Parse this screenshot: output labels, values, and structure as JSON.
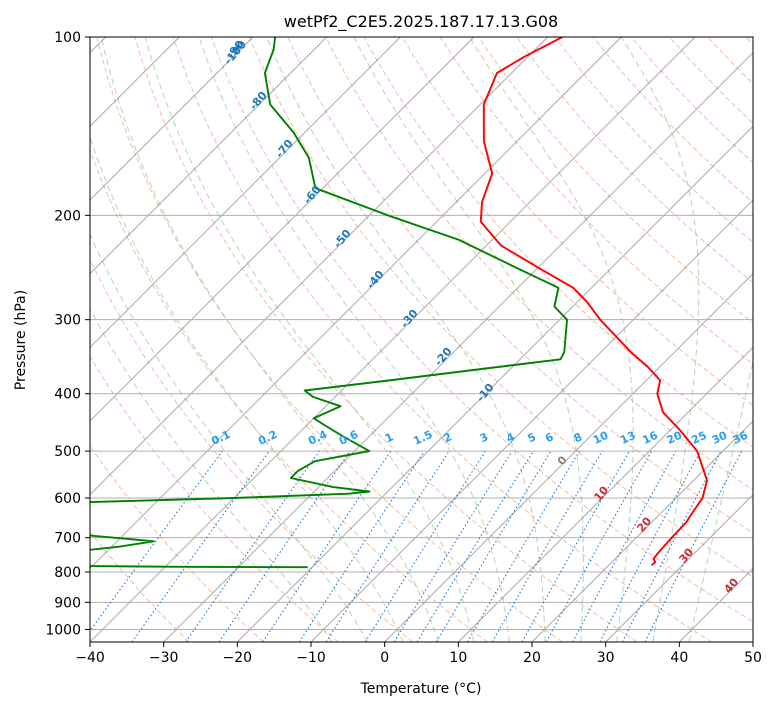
{
  "chart_data": {
    "type": "line",
    "subtype": "skew-T log-P diagram",
    "title": "wetPf2_C2E5.2025.187.17.13.G08",
    "xlabel": "Temperature (°C)",
    "ylabel": "Pressure (hPa)",
    "xlim": [
      -40,
      50
    ],
    "ylim": [
      1050,
      100
    ],
    "y_scale": "log",
    "x_ticks": [
      -40,
      -30,
      -20,
      -10,
      0,
      10,
      20,
      30,
      40,
      50
    ],
    "x_tick_labels": [
      "−40",
      "−30",
      "−20",
      "−10",
      "0",
      "10",
      "20",
      "30",
      "40",
      "50"
    ],
    "y_ticks": [
      100,
      200,
      300,
      400,
      500,
      600,
      700,
      800,
      900,
      1000
    ],
    "grid": true,
    "series": [
      {
        "role": "temperature",
        "color": "#ff0000",
        "points": [
          [
            779,
            25.8
          ],
          [
            770,
            25.9
          ],
          [
            760,
            25.2
          ],
          [
            740,
            25.0
          ],
          [
            700,
            24.8
          ],
          [
            660,
            24.7
          ],
          [
            640,
            24.3
          ],
          [
            600,
            23.6
          ],
          [
            560,
            21.8
          ],
          [
            500,
            16.5
          ],
          [
            460,
            11.2
          ],
          [
            430,
            6.6
          ],
          [
            400,
            3.3
          ],
          [
            380,
            1.9
          ],
          [
            360,
            -1.7
          ],
          [
            340,
            -6.0
          ],
          [
            300,
            -14.5
          ],
          [
            280,
            -18.7
          ],
          [
            265,
            -22.5
          ],
          [
            245,
            -30.0
          ],
          [
            225,
            -38.0
          ],
          [
            205,
            -44.0
          ],
          [
            190,
            -46.5
          ],
          [
            170,
            -49.0
          ],
          [
            150,
            -54.5
          ],
          [
            130,
            -59.5
          ],
          [
            115,
            -62.0
          ],
          [
            108,
            -60.5
          ],
          [
            100,
            -58.0
          ]
        ]
      },
      {
        "role": "dewpoint",
        "color": "#008000",
        "points": [
          [
            785,
            -20.6
          ],
          [
            784,
            -38.0
          ],
          [
            780,
            -60.0
          ],
          [
            778,
            -67.0
          ],
          [
            773,
            -69.0
          ],
          [
            765,
            -65.0
          ],
          [
            755,
            -65.0
          ],
          [
            745,
            -53.0
          ],
          [
            735,
            -53.0
          ],
          [
            725,
            -49.0
          ],
          [
            710,
            -45.0
          ],
          [
            695,
            -54.0
          ],
          [
            680,
            -63.0
          ],
          [
            670,
            -67.0
          ],
          [
            660,
            -70.0
          ],
          [
            610,
            -60.0
          ],
          [
            600,
            -40.0
          ],
          [
            590,
            -25.0
          ],
          [
            585,
            -22.5
          ],
          [
            575,
            -28.0
          ],
          [
            555,
            -35.0
          ],
          [
            540,
            -35.0
          ],
          [
            520,
            -34.0
          ],
          [
            500,
            -28.0
          ],
          [
            470,
            -34.0
          ],
          [
            450,
            -38.0
          ],
          [
            440,
            -40.0
          ],
          [
            420,
            -38.0
          ],
          [
            405,
            -43.0
          ],
          [
            395,
            -45.0
          ],
          [
            380,
            -35.0
          ],
          [
            350,
            -14.5
          ],
          [
            340,
            -15.0
          ],
          [
            300,
            -19.0
          ],
          [
            285,
            -22.5
          ],
          [
            265,
            -24.5
          ],
          [
            245,
            -33.0
          ],
          [
            220,
            -44.5
          ],
          [
            200,
            -57.5
          ],
          [
            180,
            -71.0
          ],
          [
            160,
            -76.0
          ],
          [
            145,
            -81.5
          ],
          [
            130,
            -88.5
          ],
          [
            115,
            -93.5
          ],
          [
            105,
            -95.5
          ],
          [
            100,
            -97.0
          ]
        ]
      }
    ],
    "dry_adiabat_labels": [
      "0",
      "10",
      "20",
      "30",
      "40",
      "-10",
      "-20",
      "-30",
      "-40",
      "-50",
      "-60",
      "-70",
      "-80",
      "-90",
      "-100"
    ],
    "mixing_ratio_labels": [
      "0.1",
      "0.2",
      "0.4",
      "0.6",
      "1",
      "1.5",
      "2",
      "3",
      "4",
      "5",
      "6",
      "8",
      "10",
      "13",
      "16",
      "20",
      "25",
      "30",
      "36"
    ],
    "colors": {
      "temperature": "#ff0000",
      "dewpoint": "#008000",
      "isotherm": "#7f7f7f",
      "isobar": "#b0b0b0",
      "dry_adiabat": "#f4a582",
      "moist_adiabat": "#8fbc8f",
      "mixing_ratio": "#1f77d4",
      "dry_label_warm": "#d62728",
      "dry_label_cold": "#1f77b4",
      "mixing_label": "#2a9df4",
      "zero_label": "#7f7f7f"
    }
  }
}
